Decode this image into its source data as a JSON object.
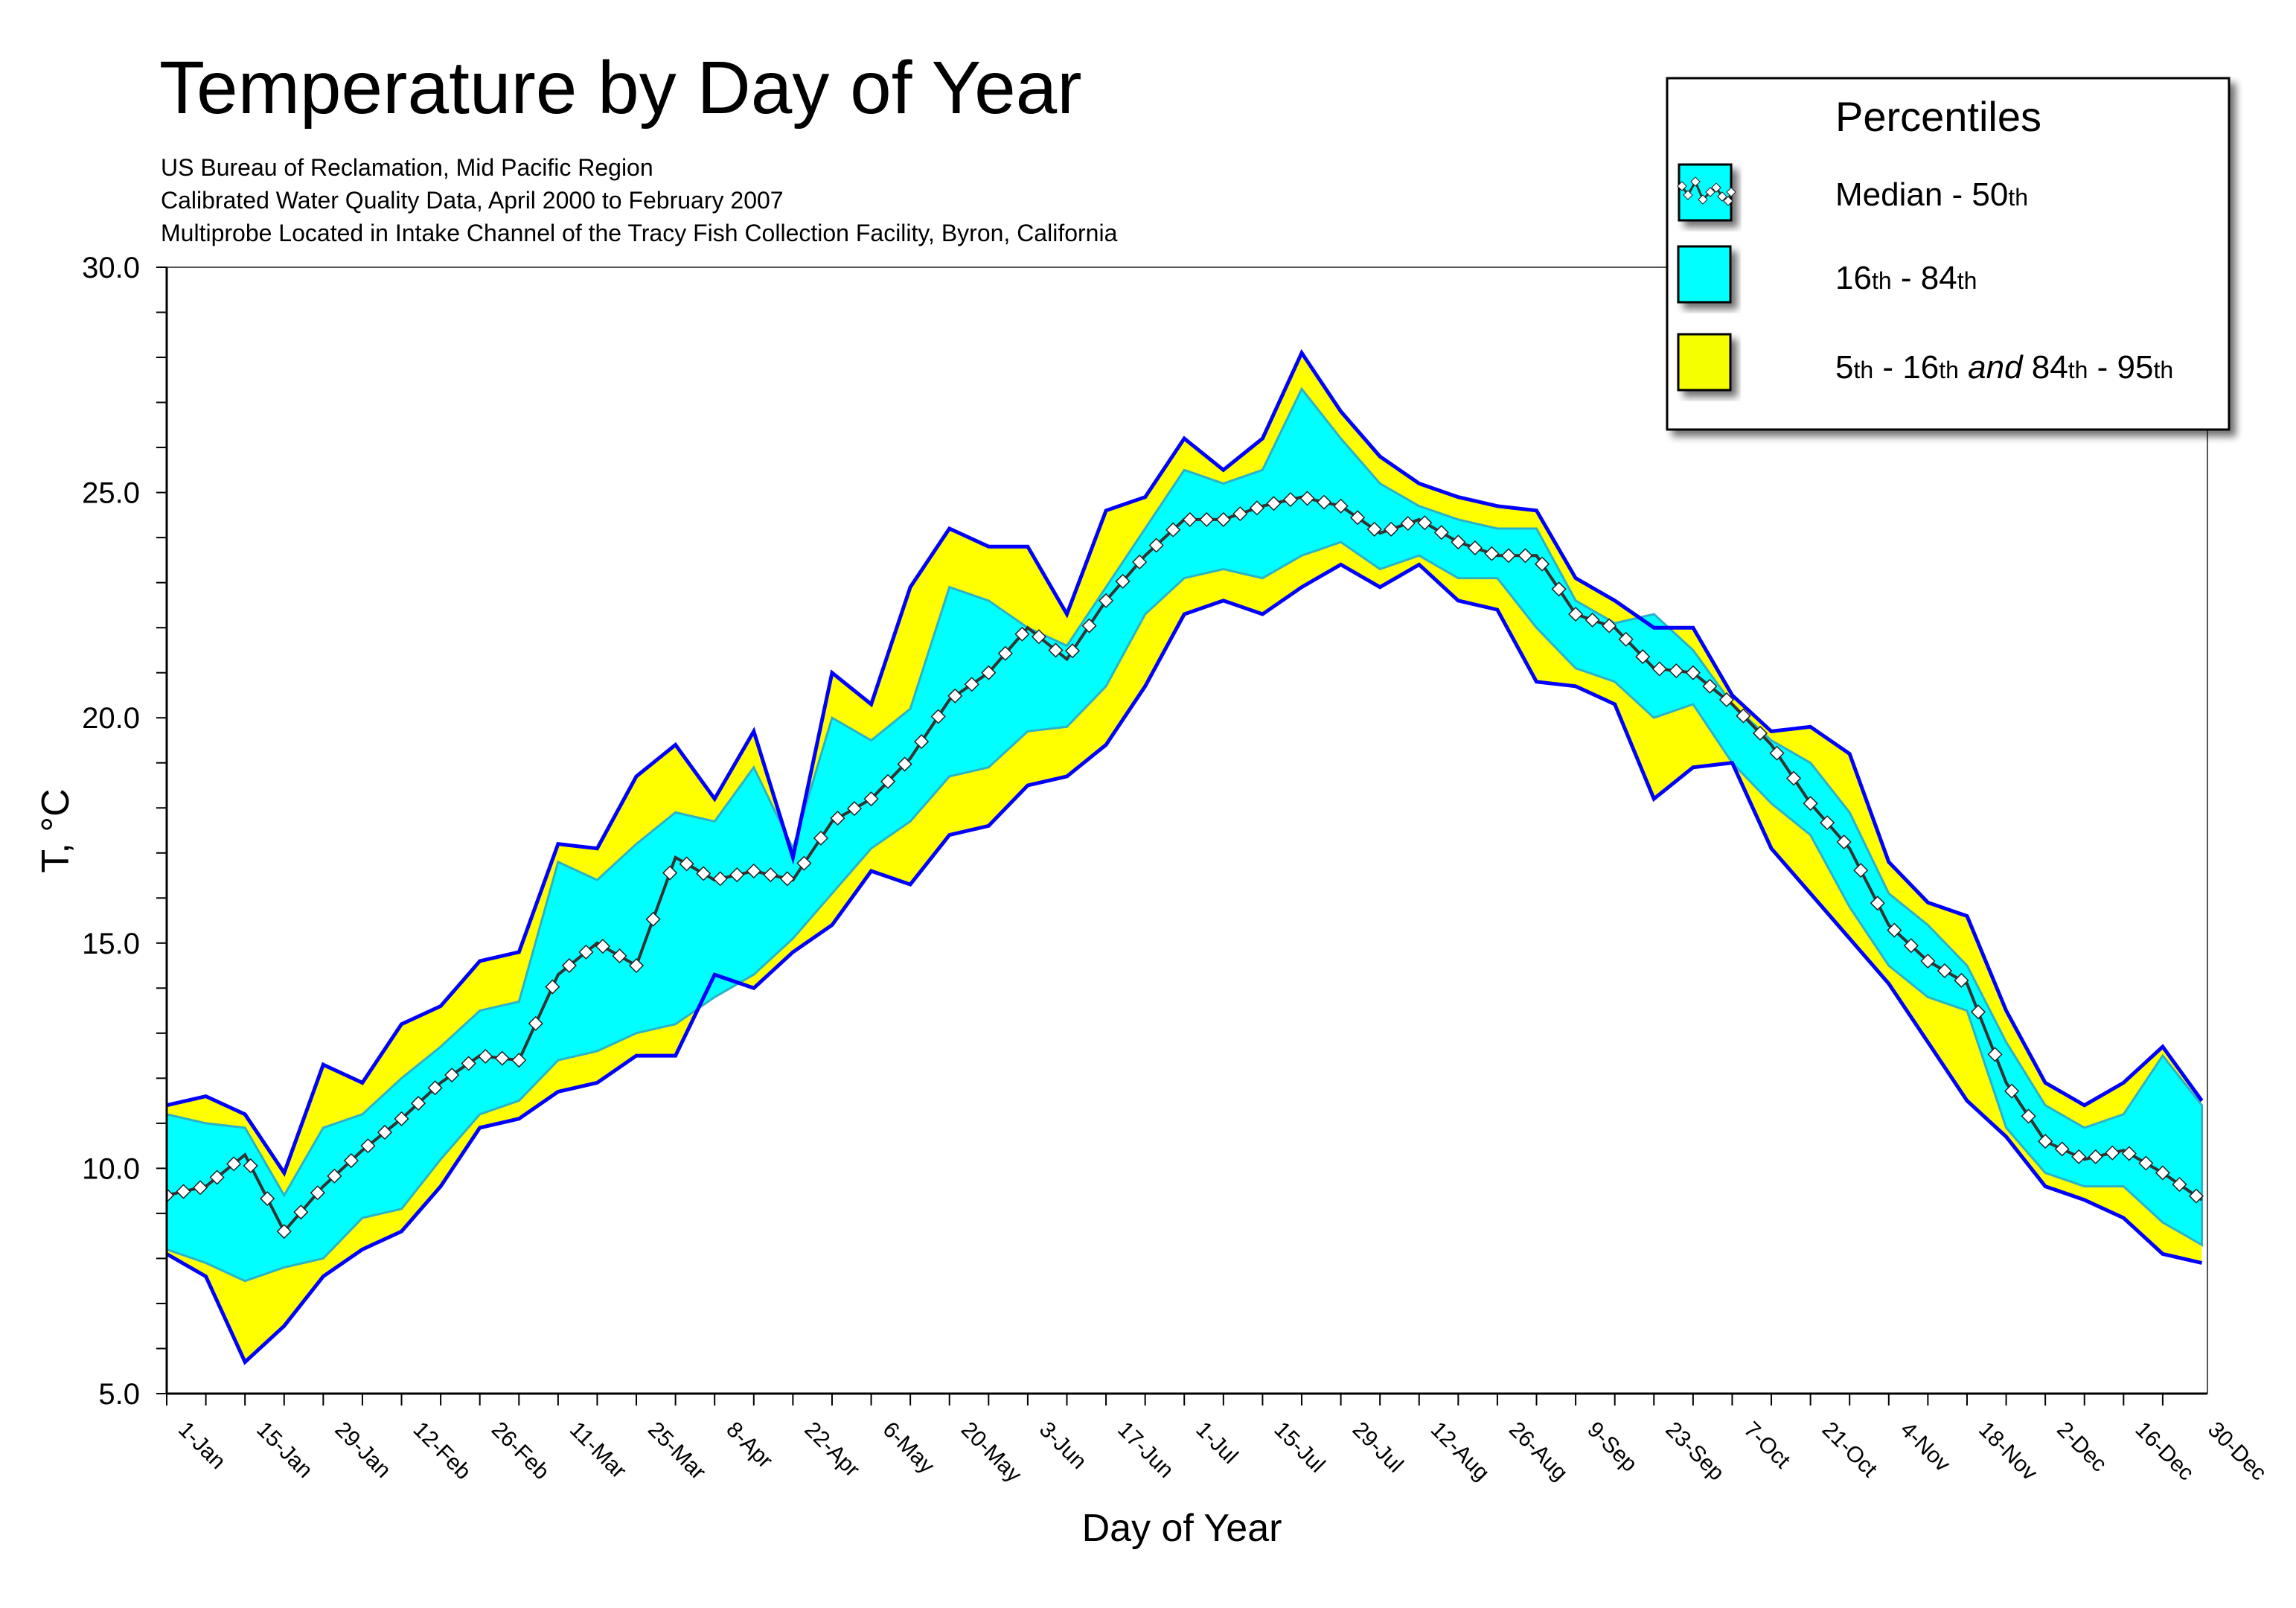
{
  "colors": {
    "outer_band": "#FFFF00",
    "inner_band": "#00FFFF",
    "inner_band_edge": "#2AB3C8",
    "outer_edge": "#0000FF",
    "median_line": "#333333",
    "median_marker_fill": "#FFFFFF",
    "median_marker_stroke": "#222222",
    "axis": "#000000",
    "frame": "#555555"
  },
  "chart_data": {
    "type": "area",
    "title": "Temperature by Day of Year",
    "subtitle_lines": [
      "US Bureau of Reclamation, Mid Pacific Region",
      "Calibrated Water Quality Data, April 2000 to February 2007",
      "Multiprobe Located in Intake Channel of the Tracy Fish Collection Facility, Byron, California"
    ],
    "xlabel": "Day of Year",
    "ylabel": "T, °C",
    "xlim": [
      1,
      366
    ],
    "ylim": [
      5,
      30
    ],
    "y_ticks": [
      5,
      10,
      15,
      20,
      25,
      30
    ],
    "y_tick_labels": [
      "5.0",
      "10.0",
      "15.0",
      "20.0",
      "25.0",
      "30.0"
    ],
    "y_minor_step": 1,
    "x_ticks": [
      1,
      15,
      29,
      43,
      57,
      71,
      85,
      99,
      113,
      127,
      141,
      155,
      169,
      183,
      197,
      211,
      225,
      239,
      253,
      267,
      281,
      295,
      309,
      323,
      337,
      351,
      364
    ],
    "x_tick_labels": [
      "1-Jan",
      "15-Jan",
      "29-Jan",
      "12-Feb",
      "26-Feb",
      "11-Mar",
      "25-Mar",
      "8-Apr",
      "22-Apr",
      "6-May",
      "20-May",
      "3-Jun",
      "17-Jun",
      "1-Jul",
      "15-Jul",
      "29-Jul",
      "12-Aug",
      "26-Aug",
      "9-Sep",
      "23-Sep",
      "7-Oct",
      "21-Oct",
      "4-Nov",
      "18-Nov",
      "2-Dec",
      "16-Dec",
      "30-Dec"
    ],
    "x_minor_step": 7,
    "grid": false,
    "x": [
      1,
      8,
      15,
      22,
      29,
      36,
      43,
      50,
      57,
      64,
      71,
      78,
      85,
      92,
      99,
      106,
      113,
      120,
      127,
      134,
      141,
      148,
      155,
      162,
      169,
      176,
      183,
      190,
      197,
      204,
      211,
      218,
      225,
      232,
      239,
      246,
      253,
      260,
      267,
      274,
      281,
      288,
      295,
      302,
      309,
      316,
      323,
      330,
      337,
      344,
      351,
      358,
      365
    ],
    "series": [
      {
        "name": "95th percentile",
        "values": [
          11.4,
          11.6,
          11.2,
          9.9,
          12.3,
          11.9,
          13.2,
          13.6,
          14.6,
          14.8,
          17.2,
          17.1,
          18.7,
          19.4,
          18.2,
          19.7,
          16.9,
          21.0,
          20.3,
          22.9,
          24.2,
          23.8,
          23.8,
          22.3,
          24.6,
          24.9,
          26.2,
          25.5,
          26.2,
          28.1,
          26.8,
          25.8,
          25.2,
          24.9,
          24.7,
          24.6,
          23.1,
          22.6,
          22.0,
          22.0,
          20.5,
          19.7,
          19.8,
          19.2,
          16.8,
          15.9,
          15.6,
          13.5,
          11.9,
          11.4,
          11.9,
          12.7,
          11.5
        ]
      },
      {
        "name": "84th percentile",
        "values": [
          11.2,
          11.0,
          10.9,
          9.4,
          10.9,
          11.2,
          12.0,
          12.7,
          13.5,
          13.7,
          16.8,
          16.4,
          17.2,
          17.9,
          17.7,
          18.9,
          17.1,
          20.0,
          19.5,
          20.2,
          22.9,
          22.6,
          22.0,
          21.6,
          22.9,
          24.2,
          25.5,
          25.2,
          25.5,
          27.3,
          26.2,
          25.2,
          24.7,
          24.4,
          24.2,
          24.2,
          22.6,
          22.1,
          22.3,
          21.5,
          20.3,
          19.5,
          19.0,
          17.9,
          16.1,
          15.4,
          14.5,
          12.8,
          11.4,
          10.9,
          11.2,
          12.5,
          11.4
        ]
      },
      {
        "name": "Median - 50th",
        "values": [
          9.4,
          9.6,
          10.3,
          8.6,
          9.6,
          10.4,
          11.1,
          11.9,
          12.5,
          12.4,
          14.3,
          15.0,
          14.5,
          16.9,
          16.4,
          16.6,
          16.4,
          17.7,
          18.2,
          19.1,
          20.4,
          21.0,
          22.0,
          21.3,
          22.6,
          23.6,
          24.4,
          24.4,
          24.7,
          24.9,
          24.7,
          24.1,
          24.4,
          23.9,
          23.6,
          23.6,
          22.3,
          22.0,
          21.1,
          21.0,
          20.3,
          19.4,
          18.1,
          17.1,
          15.4,
          14.6,
          14.1,
          11.9,
          10.6,
          10.2,
          10.4,
          9.9,
          9.3
        ]
      },
      {
        "name": "16th percentile",
        "values": [
          8.2,
          7.9,
          7.5,
          7.8,
          8.0,
          8.9,
          9.1,
          10.2,
          11.2,
          11.5,
          12.4,
          12.6,
          13.0,
          13.2,
          13.8,
          14.3,
          15.1,
          16.1,
          17.1,
          17.7,
          18.7,
          18.9,
          19.7,
          19.8,
          20.7,
          22.3,
          23.1,
          23.3,
          23.1,
          23.6,
          23.9,
          23.3,
          23.6,
          23.1,
          23.1,
          22.0,
          21.1,
          20.8,
          20.0,
          20.3,
          19.0,
          18.1,
          17.4,
          15.8,
          14.5,
          13.8,
          13.5,
          10.9,
          9.9,
          9.6,
          9.6,
          8.8,
          8.3
        ]
      },
      {
        "name": "5th percentile",
        "values": [
          8.1,
          7.6,
          5.7,
          6.5,
          7.6,
          8.2,
          8.6,
          9.6,
          10.9,
          11.1,
          11.7,
          11.9,
          12.5,
          12.5,
          14.3,
          14.0,
          14.8,
          15.4,
          16.6,
          16.3,
          17.4,
          17.6,
          18.5,
          18.7,
          19.4,
          20.7,
          22.3,
          22.6,
          22.3,
          22.9,
          23.4,
          22.9,
          23.4,
          22.6,
          22.4,
          20.8,
          20.7,
          20.3,
          18.2,
          18.9,
          19.0,
          17.1,
          16.1,
          15.1,
          14.1,
          12.8,
          11.5,
          10.7,
          9.6,
          9.3,
          8.9,
          8.1,
          7.9
        ]
      }
    ],
    "legend": {
      "title": "Percentiles",
      "placement": "top-right",
      "entries": [
        {
          "label_parts": [
            "Median - 50",
            "th"
          ],
          "swatch": "median"
        },
        {
          "label_parts": [
            "16",
            "th",
            " - 84",
            "th"
          ],
          "swatch": "inner"
        },
        {
          "label_parts": [
            "5",
            "th",
            " - 16",
            "th",
            " and ",
            "84",
            "th",
            " - 95",
            "th"
          ],
          "swatch": "outer"
        }
      ]
    }
  }
}
